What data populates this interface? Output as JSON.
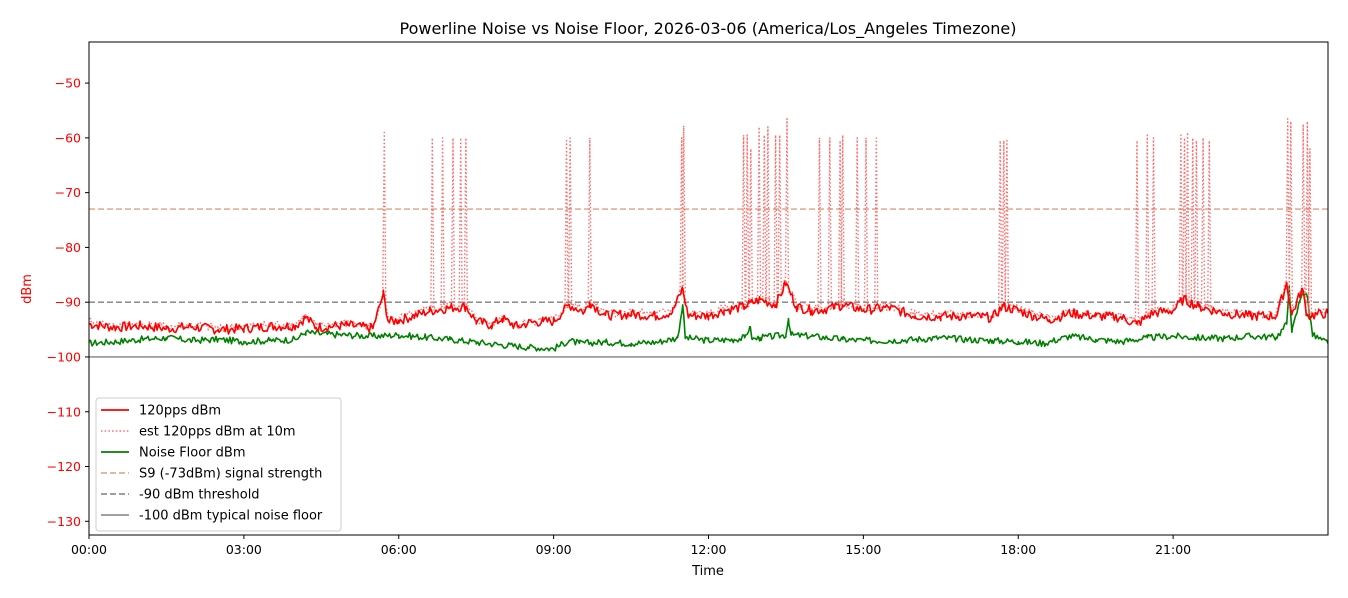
{
  "chart_data": {
    "type": "line",
    "title": "Powerline Noise vs Noise Floor, 2026-03-06 (America/Los_Angeles Timezone)",
    "xlabel": "Time",
    "ylabel": "dBm",
    "xlim": [
      0,
      24
    ],
    "ylim": [
      -132.5,
      -42.5
    ],
    "x_tick_values": [
      0,
      3,
      6,
      9,
      12,
      15,
      18,
      21
    ],
    "x_tick_labels": [
      "00:00",
      "03:00",
      "06:00",
      "09:00",
      "12:00",
      "15:00",
      "18:00",
      "21:00"
    ],
    "y_ticks": [
      -50,
      -60,
      -70,
      -80,
      -90,
      -100,
      -110,
      -120,
      -130
    ],
    "grid": false,
    "legend_position": "lower-left",
    "colors": {
      "pps": "#ff0000",
      "est": "#ff6b6b",
      "noise": "#008000",
      "s9": "#daa07f",
      "thr90": "#7f7f7f",
      "floor100": "#808080",
      "ylabel_color": "#ff0000"
    },
    "series": [
      {
        "name": "120pps dBm",
        "style": "solid",
        "points": [
          [
            0,
            -94.0
          ],
          [
            0.5,
            -94.6
          ],
          [
            1,
            -94.3
          ],
          [
            1.5,
            -94.8
          ],
          [
            2,
            -94.5
          ],
          [
            2.5,
            -95.0
          ],
          [
            3,
            -94.8
          ],
          [
            3.5,
            -94.4
          ],
          [
            4,
            -94.3
          ],
          [
            4.2,
            -92.8
          ],
          [
            4.4,
            -94.6
          ],
          [
            5,
            -94.2
          ],
          [
            5.5,
            -94.8
          ],
          [
            5.7,
            -88.5
          ],
          [
            5.8,
            -93.6
          ],
          [
            6,
            -93.3
          ],
          [
            6.3,
            -92.5
          ],
          [
            6.6,
            -91.6
          ],
          [
            7,
            -91.0
          ],
          [
            7.3,
            -90.8
          ],
          [
            7.5,
            -93.5
          ],
          [
            7.8,
            -94.2
          ],
          [
            8,
            -93.0
          ],
          [
            8.3,
            -94.5
          ],
          [
            8.5,
            -93.8
          ],
          [
            8.8,
            -93.5
          ],
          [
            9,
            -93.5
          ],
          [
            9.3,
            -90.5
          ],
          [
            9.6,
            -91.8
          ],
          [
            9.7,
            -90.0
          ],
          [
            10,
            -92.4
          ],
          [
            10.5,
            -92.2
          ],
          [
            11,
            -92.5
          ],
          [
            11.3,
            -91.8
          ],
          [
            11.5,
            -87.5
          ],
          [
            11.6,
            -92.4
          ],
          [
            12,
            -92.5
          ],
          [
            12.3,
            -91.5
          ],
          [
            12.7,
            -90.8
          ],
          [
            13,
            -89.5
          ],
          [
            13.3,
            -90.5
          ],
          [
            13.5,
            -86.5
          ],
          [
            13.7,
            -90.8
          ],
          [
            14,
            -91.5
          ],
          [
            14.3,
            -91.2
          ],
          [
            14.6,
            -90.5
          ],
          [
            15,
            -91.4
          ],
          [
            15.5,
            -91.0
          ],
          [
            16,
            -92.5
          ],
          [
            16.5,
            -92.6
          ],
          [
            17,
            -92.5
          ],
          [
            17.5,
            -92.8
          ],
          [
            17.7,
            -90.8
          ],
          [
            18,
            -91.5
          ],
          [
            18.3,
            -92.5
          ],
          [
            18.6,
            -93.2
          ],
          [
            19,
            -92.0
          ],
          [
            19.5,
            -92.5
          ],
          [
            20,
            -92.8
          ],
          [
            20.3,
            -94.0
          ],
          [
            20.6,
            -92.0
          ],
          [
            21,
            -91.5
          ],
          [
            21.2,
            -89.5
          ],
          [
            21.5,
            -90.8
          ],
          [
            22,
            -92.0
          ],
          [
            22.5,
            -92.5
          ],
          [
            23,
            -92.5
          ],
          [
            23.2,
            -86.5
          ],
          [
            23.3,
            -92.3
          ],
          [
            23.5,
            -87.5
          ],
          [
            23.6,
            -92.5
          ],
          [
            24,
            -92.0
          ]
        ]
      },
      {
        "name": "est 120pps dBm at 10m",
        "style": "dotted",
        "baseline": "120pps dBm",
        "spikes": [
          [
            5.72,
            -59.0
          ],
          [
            6.65,
            -60.0
          ],
          [
            6.85,
            -60.0
          ],
          [
            7.05,
            -60.0
          ],
          [
            7.2,
            -60.0
          ],
          [
            7.3,
            -60.0
          ],
          [
            9.25,
            -60.5
          ],
          [
            9.32,
            -60.0
          ],
          [
            9.7,
            -60.0
          ],
          [
            11.48,
            -60.0
          ],
          [
            11.52,
            -57.8
          ],
          [
            12.68,
            -59.5
          ],
          [
            12.75,
            -59.5
          ],
          [
            12.82,
            -62.0
          ],
          [
            12.98,
            -58.0
          ],
          [
            13.08,
            -59.5
          ],
          [
            13.15,
            -58.0
          ],
          [
            13.3,
            -59.5
          ],
          [
            13.38,
            -59.5
          ],
          [
            13.52,
            -56.5
          ],
          [
            14.15,
            -60.0
          ],
          [
            14.35,
            -60.0
          ],
          [
            14.55,
            -60.5
          ],
          [
            14.6,
            -59.5
          ],
          [
            14.88,
            -60.0
          ],
          [
            15.05,
            -60.0
          ],
          [
            15.25,
            -60.0
          ],
          [
            17.65,
            -60.5
          ],
          [
            17.72,
            -60.5
          ],
          [
            17.78,
            -60.5
          ],
          [
            20.3,
            -60.5
          ],
          [
            20.5,
            -59.5
          ],
          [
            20.62,
            -60.0
          ],
          [
            21.15,
            -59.5
          ],
          [
            21.22,
            -60.0
          ],
          [
            21.28,
            -59.0
          ],
          [
            21.38,
            -60.0
          ],
          [
            21.45,
            -60.5
          ],
          [
            21.58,
            -60.0
          ],
          [
            21.7,
            -60.5
          ],
          [
            23.22,
            -56.5
          ],
          [
            23.28,
            -57.0
          ],
          [
            23.52,
            -57.5
          ],
          [
            23.6,
            -57.0
          ],
          [
            23.65,
            -62.0
          ]
        ]
      },
      {
        "name": "Noise Floor dBm",
        "style": "solid",
        "points": [
          [
            0,
            -97.5
          ],
          [
            0.5,
            -97.2
          ],
          [
            1,
            -96.8
          ],
          [
            1.5,
            -96.5
          ],
          [
            2,
            -97.0
          ],
          [
            2.5,
            -96.8
          ],
          [
            3,
            -97.2
          ],
          [
            3.5,
            -97.0
          ],
          [
            4,
            -96.8
          ],
          [
            4.2,
            -95.5
          ],
          [
            4.5,
            -95.8
          ],
          [
            5,
            -96.0
          ],
          [
            5.5,
            -96.2
          ],
          [
            6,
            -96.0
          ],
          [
            6.5,
            -96.4
          ],
          [
            7,
            -96.8
          ],
          [
            7.5,
            -97.3
          ],
          [
            8,
            -97.8
          ],
          [
            8.5,
            -98.2
          ],
          [
            9,
            -98.5
          ],
          [
            9.3,
            -97.0
          ],
          [
            9.5,
            -97.5
          ],
          [
            10,
            -97.3
          ],
          [
            10.5,
            -97.5
          ],
          [
            11,
            -97.3
          ],
          [
            11.4,
            -96.5
          ],
          [
            11.5,
            -90.5
          ],
          [
            11.55,
            -96.5
          ],
          [
            12,
            -97.0
          ],
          [
            12.5,
            -96.8
          ],
          [
            12.7,
            -96.5
          ],
          [
            12.8,
            -94.5
          ],
          [
            12.85,
            -96.8
          ],
          [
            13,
            -96.5
          ],
          [
            13.5,
            -96.0
          ],
          [
            13.55,
            -93.0
          ],
          [
            13.6,
            -96.0
          ],
          [
            14,
            -96.2
          ],
          [
            14.3,
            -96.5
          ],
          [
            14.6,
            -96.8
          ],
          [
            15,
            -97.0
          ],
          [
            15.5,
            -97.0
          ],
          [
            16,
            -96.8
          ],
          [
            16.5,
            -96.5
          ],
          [
            17,
            -96.8
          ],
          [
            17.5,
            -97.0
          ],
          [
            18,
            -97.2
          ],
          [
            18.5,
            -97.5
          ],
          [
            19,
            -96.2
          ],
          [
            19.5,
            -96.8
          ],
          [
            20,
            -97.2
          ],
          [
            20.5,
            -96.5
          ],
          [
            21,
            -96.2
          ],
          [
            21.5,
            -96.5
          ],
          [
            22,
            -96.6
          ],
          [
            22.5,
            -96.2
          ],
          [
            23,
            -96.4
          ],
          [
            23.2,
            -94.0
          ],
          [
            23.25,
            -87.0
          ],
          [
            23.3,
            -95.5
          ],
          [
            23.5,
            -88.0
          ],
          [
            23.6,
            -89.0
          ],
          [
            23.7,
            -96.0
          ],
          [
            24,
            -97.5
          ]
        ]
      },
      {
        "name": "S9 (-73dBm) signal strength",
        "style": "dashed",
        "y": -73
      },
      {
        "name": "-90 dBm threshold",
        "style": "dashed",
        "y": -90
      },
      {
        "name": "-100 dBm typical noise floor",
        "style": "solid",
        "y": -100
      }
    ]
  }
}
